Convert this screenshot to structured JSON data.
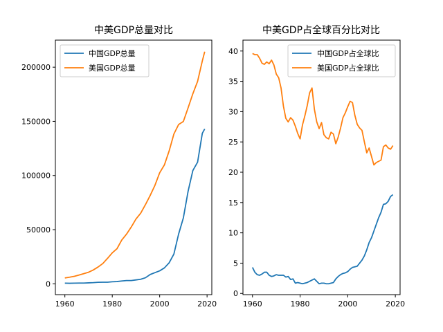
{
  "chart_data": [
    {
      "type": "line",
      "title": "中美GDP总量对比",
      "xlabel": "",
      "ylabel": "",
      "xlim": [
        1956,
        2022
      ],
      "ylim": [
        -10000,
        225000
      ],
      "xticks": [
        1960,
        1980,
        2000,
        2020
      ],
      "yticks": [
        0,
        50000,
        100000,
        150000,
        200000
      ],
      "legend": "top-left",
      "grid": false,
      "series": [
        {
          "name": "中国GDP总量",
          "color": "#1f77b4",
          "x": [
            1960,
            1962,
            1964,
            1966,
            1968,
            1970,
            1972,
            1974,
            1976,
            1978,
            1980,
            1982,
            1984,
            1986,
            1988,
            1990,
            1992,
            1994,
            1996,
            1998,
            2000,
            2002,
            2004,
            2006,
            2008,
            2010,
            2012,
            2014,
            2016,
            2018,
            2019
          ],
          "y": [
            600,
            500,
            600,
            700,
            700,
            900,
            1100,
            1400,
            1500,
            1500,
            1900,
            2100,
            2600,
            3000,
            3000,
            3600,
            4200,
            5600,
            8600,
            10300,
            12000,
            14700,
            19400,
            27500,
            46000,
            60900,
            85500,
            104600,
            112300,
            139000,
            143000
          ]
        },
        {
          "name": "美国GDP总量",
          "color": "#ff7f0e",
          "x": [
            1960,
            1962,
            1964,
            1966,
            1968,
            1970,
            1972,
            1974,
            1976,
            1978,
            1980,
            1982,
            1984,
            1986,
            1988,
            1990,
            1992,
            1994,
            1996,
            1998,
            2000,
            2002,
            2004,
            2006,
            2008,
            2010,
            2012,
            2014,
            2016,
            2018,
            2019
          ],
          "y": [
            5400,
            6100,
            6900,
            8100,
            9400,
            10700,
            12800,
            15500,
            18700,
            23500,
            28600,
            32400,
            40400,
            45800,
            52400,
            59800,
            65200,
            73100,
            81600,
            90900,
            102500,
            109800,
            122700,
            138300,
            147100,
            149900,
            162500,
            175500,
            186900,
            205800,
            214300
          ]
        }
      ]
    },
    {
      "type": "line",
      "title": "中美GDP占全球百分比对比",
      "xlabel": "",
      "ylabel": "",
      "xlim": [
        1956,
        2022
      ],
      "ylim": [
        -0.2,
        41.8
      ],
      "xticks": [
        1960,
        1980,
        2000,
        2020
      ],
      "yticks": [
        0,
        5,
        10,
        15,
        20,
        25,
        30,
        35,
        40
      ],
      "legend": "top-right",
      "grid": false,
      "series": [
        {
          "name": "中国GDP占全球比",
          "color": "#1f77b4",
          "x": [
            1960,
            1961,
            1962,
            1963,
            1964,
            1965,
            1966,
            1967,
            1968,
            1969,
            1970,
            1971,
            1972,
            1973,
            1974,
            1975,
            1976,
            1977,
            1978,
            1979,
            1980,
            1981,
            1982,
            1983,
            1984,
            1985,
            1986,
            1987,
            1988,
            1989,
            1990,
            1991,
            1992,
            1993,
            1994,
            1995,
            1996,
            1997,
            1998,
            1999,
            2000,
            2001,
            2002,
            2003,
            2004,
            2005,
            2006,
            2007,
            2008,
            2009,
            2010,
            2011,
            2012,
            2013,
            2014,
            2015,
            2016,
            2017,
            2018,
            2019
          ],
          "y": [
            4.3,
            3.5,
            3.1,
            3.0,
            3.2,
            3.5,
            3.5,
            3.0,
            2.8,
            2.9,
            3.1,
            3.0,
            3.0,
            3.0,
            2.7,
            2.8,
            2.3,
            2.4,
            1.7,
            1.8,
            1.7,
            1.6,
            1.7,
            1.8,
            2.0,
            2.2,
            2.4,
            2.0,
            1.6,
            1.7,
            1.7,
            1.6,
            1.6,
            1.7,
            1.8,
            2.4,
            2.8,
            3.1,
            3.3,
            3.4,
            3.6,
            4.0,
            4.3,
            4.4,
            4.5,
            5.0,
            5.5,
            6.2,
            7.2,
            8.4,
            9.2,
            10.3,
            11.4,
            12.5,
            13.4,
            14.7,
            14.8,
            15.2,
            16.0,
            16.3
          ]
        },
        {
          "name": "美国GDP占全球比",
          "color": "#ff7f0e",
          "x": [
            1960,
            1961,
            1962,
            1963,
            1964,
            1965,
            1966,
            1967,
            1968,
            1969,
            1970,
            1971,
            1972,
            1973,
            1974,
            1975,
            1976,
            1977,
            1978,
            1979,
            1980,
            1981,
            1982,
            1983,
            1984,
            1985,
            1986,
            1987,
            1988,
            1989,
            1990,
            1991,
            1992,
            1993,
            1994,
            1995,
            1996,
            1997,
            1998,
            1999,
            2000,
            2001,
            2002,
            2003,
            2004,
            2005,
            2006,
            2007,
            2008,
            2009,
            2010,
            2011,
            2012,
            2013,
            2014,
            2015,
            2016,
            2017,
            2018,
            2019
          ],
          "y": [
            39.6,
            39.4,
            39.4,
            38.8,
            38.0,
            37.8,
            38.2,
            37.9,
            38.5,
            37.7,
            36.2,
            35.6,
            33.9,
            30.9,
            28.9,
            28.3,
            29.0,
            28.6,
            27.6,
            26.4,
            25.5,
            27.8,
            29.3,
            31.0,
            33.1,
            33.9,
            30.4,
            28.3,
            27.2,
            28.2,
            26.2,
            25.7,
            25.5,
            26.6,
            26.3,
            24.7,
            25.8,
            27.3,
            29.0,
            29.8,
            30.8,
            31.7,
            31.5,
            29.4,
            27.9,
            27.3,
            26.9,
            25.0,
            23.2,
            24.0,
            22.6,
            21.2,
            21.6,
            21.8,
            22.0,
            24.2,
            24.5,
            24.0,
            23.8,
            24.4
          ]
        }
      ]
    }
  ]
}
